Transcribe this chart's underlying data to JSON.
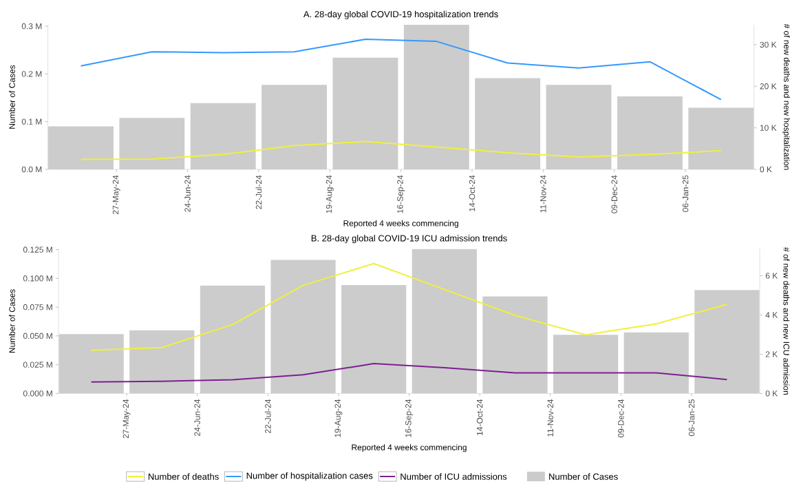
{
  "chart_data": [
    {
      "type": "bar",
      "title": "A. 28-day global COVID-19 hospitalization trends",
      "xlabel": "Reported 4 weeks commencing",
      "ylabel": "Number of Cases",
      "y2label": "# of new deaths and new hospitalization",
      "x": [
        "2024-05-13",
        "2024-06-10",
        "2024-07-08",
        "2024-08-05",
        "2024-09-02",
        "2024-09-30",
        "2024-10-28",
        "2024-11-25",
        "2024-12-23",
        "2025-01-20"
      ],
      "xlim": [
        "2024-04-30",
        "2025-02-02"
      ],
      "xticks": [
        {
          "value": "2024-05-27",
          "label": "27-May-24"
        },
        {
          "value": "2024-06-24",
          "label": "24-Jun-24"
        },
        {
          "value": "2024-07-22",
          "label": "22-Jul-24"
        },
        {
          "value": "2024-08-19",
          "label": "19-Aug-24"
        },
        {
          "value": "2024-09-16",
          "label": "16-Sep-24"
        },
        {
          "value": "2024-10-14",
          "label": "14-Oct-24"
        },
        {
          "value": "2024-11-11",
          "label": "11-Nov-24"
        },
        {
          "value": "2024-12-09",
          "label": "09-Dec-24"
        },
        {
          "value": "2025-01-06",
          "label": "06-Jan-25"
        }
      ],
      "ylim": [
        0,
        303000
      ],
      "yticks": [
        {
          "value": 0,
          "label": "0.0 M"
        },
        {
          "value": 100000,
          "label": "0.1 M"
        },
        {
          "value": 200000,
          "label": "0.2 M"
        },
        {
          "value": 300000,
          "label": "0.3 M"
        }
      ],
      "y2lim": [
        0,
        34800
      ],
      "y2ticks": [
        {
          "value": 0,
          "label": "0 K"
        },
        {
          "value": 10000,
          "label": "10 K"
        },
        {
          "value": 20000,
          "label": "20 K"
        },
        {
          "value": 30000,
          "label": "30 K"
        }
      ],
      "legend": "bottom",
      "series": [
        {
          "name": "Number of Cases",
          "color": "#cccccc",
          "values": [
            90000,
            108000,
            139000,
            177000,
            234000,
            303000,
            191000,
            177000,
            153000,
            129000
          ]
        },
        {
          "name": "Number of deaths",
          "type": "line",
          "axis": "y2",
          "color": "#f0f03c",
          "values": [
            2400,
            2500,
            3600,
            5700,
            6700,
            5400,
            4000,
            3000,
            3600,
            4500
          ]
        },
        {
          "name": "Number of hospitalization cases",
          "type": "line",
          "axis": "y2",
          "color": "#3399ff",
          "values": [
            24900,
            28300,
            28100,
            28300,
            31300,
            30800,
            25600,
            24400,
            25900,
            16800
          ]
        }
      ]
    },
    {
      "type": "bar",
      "title": "B. 28-day global COVID-19 ICU admission trends",
      "xlabel": "Reported 4 weeks commencing",
      "ylabel": "Number of Cases",
      "y2label": "# of new deaths and new ICU admission",
      "x": [
        "2024-05-13",
        "2024-06-10",
        "2024-07-08",
        "2024-08-05",
        "2024-09-02",
        "2024-09-30",
        "2024-10-28",
        "2024-11-25",
        "2024-12-23",
        "2025-01-20"
      ],
      "xlim": [
        "2024-04-30",
        "2025-02-02"
      ],
      "xticks": [
        {
          "value": "2024-05-27",
          "label": "27-May-24"
        },
        {
          "value": "2024-06-24",
          "label": "24-Jun-24"
        },
        {
          "value": "2024-07-22",
          "label": "22-Jul-24"
        },
        {
          "value": "2024-08-19",
          "label": "19-Aug-24"
        },
        {
          "value": "2024-09-16",
          "label": "16-Sep-24"
        },
        {
          "value": "2024-10-14",
          "label": "14-Oct-24"
        },
        {
          "value": "2024-11-11",
          "label": "11-Nov-24"
        },
        {
          "value": "2024-12-09",
          "label": "09-Dec-24"
        },
        {
          "value": "2025-01-06",
          "label": "06-Jan-25"
        }
      ],
      "ylim": [
        0,
        125700
      ],
      "yticks": [
        {
          "value": 0,
          "label": "0.000 M"
        },
        {
          "value": 25000,
          "label": "0.025 M"
        },
        {
          "value": 50000,
          "label": "0.050 M"
        },
        {
          "value": 75000,
          "label": "0.075 M"
        },
        {
          "value": 100000,
          "label": "0.100 M"
        },
        {
          "value": 125000,
          "label": "0.125 M"
        }
      ],
      "y2lim": [
        0,
        7370
      ],
      "y2ticks": [
        {
          "value": 0,
          "label": "0 K"
        },
        {
          "value": 2000,
          "label": "2 K"
        },
        {
          "value": 4000,
          "label": "4 K"
        },
        {
          "value": 6000,
          "label": "6 K"
        }
      ],
      "legend": "bottom",
      "series": [
        {
          "color": "#cccccc",
          "values": [
            51600,
            54800,
            93700,
            116000,
            94200,
            125700,
            84300,
            50900,
            53000,
            89900
          ]
        },
        {
          "type": "line",
          "axis": "y2",
          "color": "#f0f03c",
          "values": [
            2200,
            2340,
            3510,
            5510,
            6620,
            5300,
            3980,
            2990,
            3550,
            4540
          ]
        },
        {
          "name": "Number of ICU admissions",
          "type": "line",
          "axis": "y2",
          "color": "#7b1f8f",
          "values": [
            580,
            620,
            700,
            950,
            1520,
            1310,
            1050,
            1050,
            1050,
            710
          ]
        }
      ]
    }
  ]
}
